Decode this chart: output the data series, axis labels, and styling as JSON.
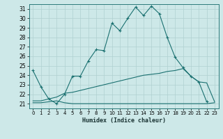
{
  "title": "",
  "xlabel": "Humidex (Indice chaleur)",
  "bg_color": "#cde8e8",
  "line_color": "#1a7070",
  "grid_color": "#b0d0d0",
  "xlim": [
    -0.5,
    23.5
  ],
  "ylim": [
    20.5,
    31.5
  ],
  "yticks": [
    21,
    22,
    23,
    24,
    25,
    26,
    27,
    28,
    29,
    30,
    31
  ],
  "xticks": [
    0,
    1,
    2,
    3,
    4,
    5,
    6,
    7,
    8,
    9,
    10,
    11,
    12,
    13,
    14,
    15,
    16,
    17,
    18,
    19,
    20,
    21,
    22,
    23
  ],
  "series1_x": [
    0,
    1,
    2,
    3,
    4,
    5,
    6,
    7,
    8,
    9,
    10,
    11,
    12,
    13,
    14,
    15,
    16,
    17,
    18,
    19,
    20,
    21,
    22
  ],
  "series1_y": [
    24.5,
    22.8,
    21.5,
    21.0,
    22.0,
    23.9,
    23.9,
    25.5,
    26.7,
    26.6,
    29.5,
    28.7,
    30.0,
    31.2,
    30.3,
    31.3,
    30.5,
    28.0,
    25.9,
    24.8,
    23.9,
    23.3,
    21.2
  ],
  "series2_x": [
    0,
    1,
    2,
    3,
    4,
    5,
    6,
    7,
    8,
    9,
    10,
    11,
    12,
    13,
    14,
    15,
    16,
    17,
    18,
    19,
    20,
    21,
    22,
    23
  ],
  "series2_y": [
    21.1,
    21.1,
    21.2,
    21.3,
    21.1,
    21.0,
    21.0,
    21.0,
    21.0,
    21.0,
    21.0,
    21.0,
    21.0,
    21.0,
    21.0,
    21.0,
    21.0,
    21.0,
    21.0,
    21.0,
    21.0,
    21.0,
    21.0,
    21.1
  ],
  "series3_x": [
    0,
    1,
    2,
    3,
    4,
    5,
    6,
    7,
    8,
    9,
    10,
    11,
    12,
    13,
    14,
    15,
    16,
    17,
    18,
    19,
    20,
    21,
    22,
    23
  ],
  "series3_y": [
    21.3,
    21.3,
    21.5,
    21.7,
    22.1,
    22.2,
    22.4,
    22.6,
    22.8,
    23.0,
    23.2,
    23.4,
    23.6,
    23.8,
    24.0,
    24.1,
    24.2,
    24.4,
    24.5,
    24.7,
    23.9,
    23.3,
    23.2,
    21.2
  ]
}
